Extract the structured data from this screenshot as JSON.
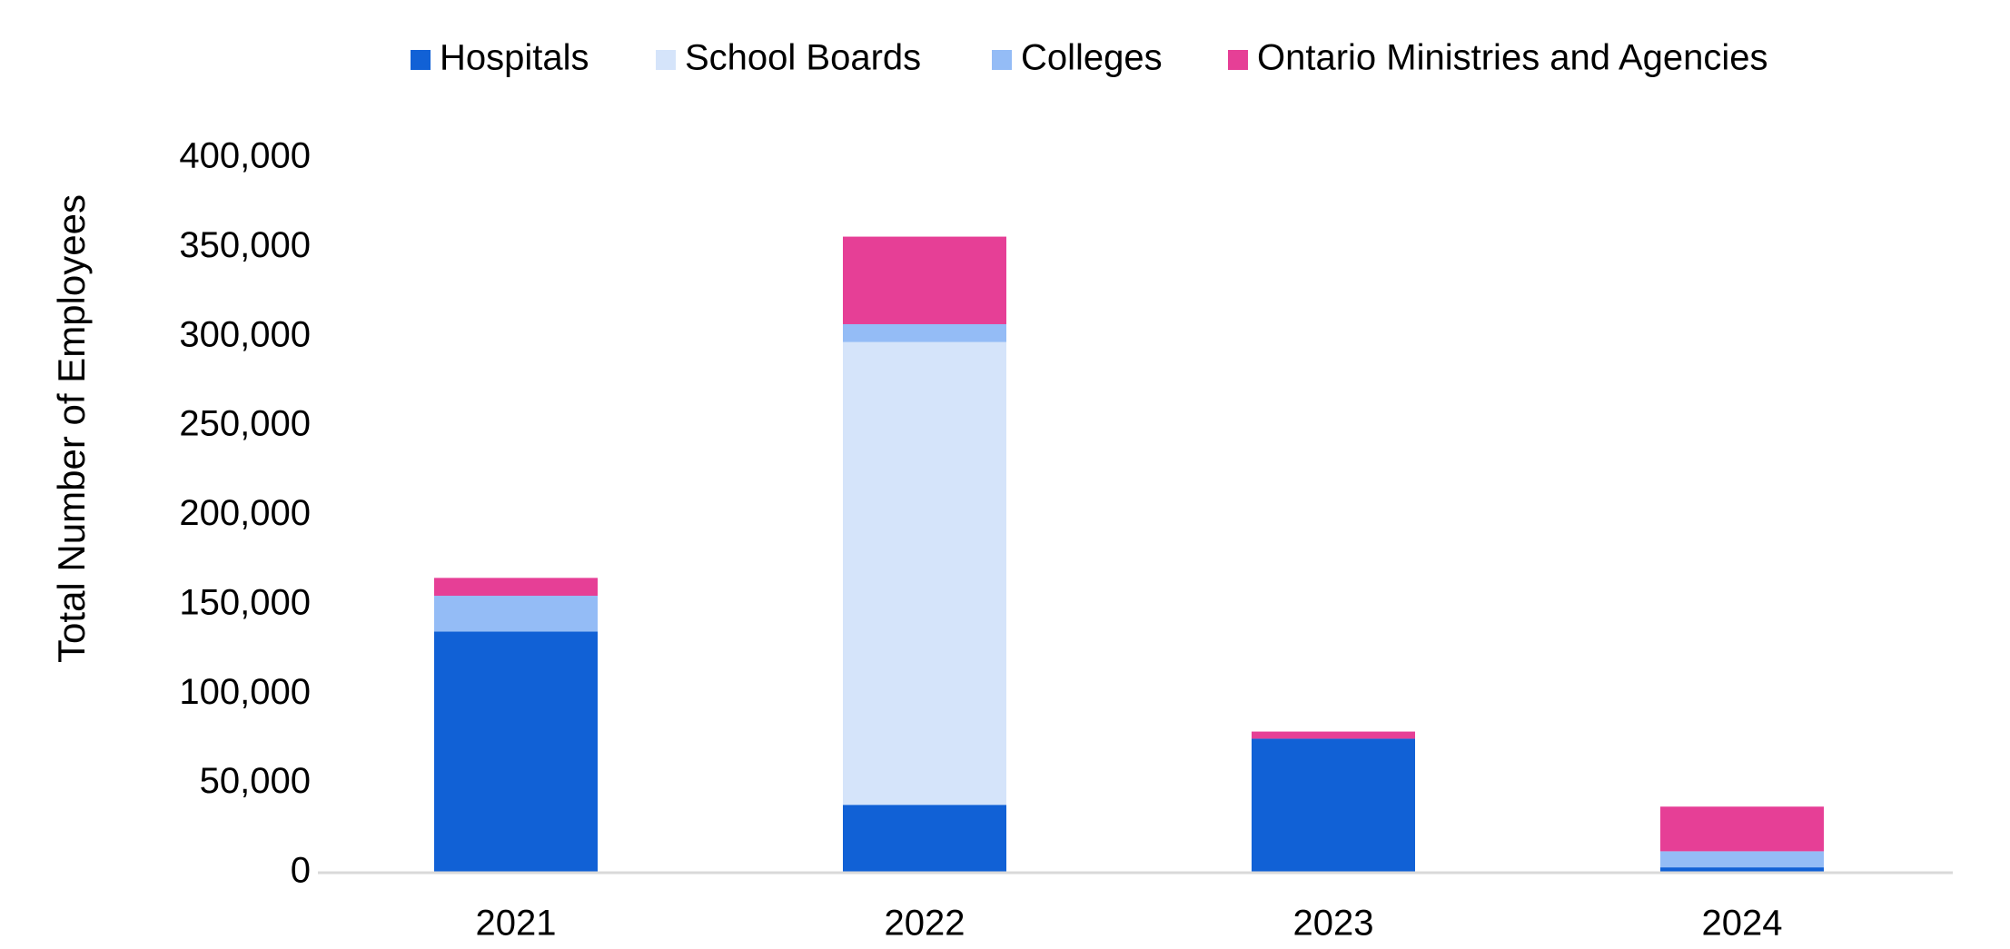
{
  "chart_data": {
    "type": "bar",
    "stacked": true,
    "title": "",
    "xlabel": "",
    "ylabel": "Total Number of Employees",
    "categories": [
      "2021",
      "2022",
      "2023",
      "2024"
    ],
    "series": [
      {
        "name": "Hospitals",
        "color": "#1161D6",
        "values": [
          135000,
          38000,
          75000,
          3000
        ]
      },
      {
        "name": "School Boards",
        "color": "#D5E4FA",
        "values": [
          0,
          259000,
          0,
          0
        ]
      },
      {
        "name": "Colleges",
        "color": "#94BCF6",
        "values": [
          20000,
          10000,
          0,
          9000
        ]
      },
      {
        "name": "Ontario Ministries and Agencies",
        "color": "#E63F96",
        "values": [
          10000,
          49000,
          4000,
          25000
        ]
      }
    ],
    "ylim": [
      0,
      400000
    ],
    "yticks": [
      0,
      50000,
      100000,
      150000,
      200000,
      250000,
      300000,
      350000,
      400000
    ],
    "ytick_labels": [
      "0",
      "50,000",
      "100,000",
      "150,000",
      "200,000",
      "250,000",
      "300,000",
      "350,000",
      "400,000"
    ],
    "grid": false,
    "legend_position": "top-center",
    "axis_color": "#D9D9D9"
  }
}
